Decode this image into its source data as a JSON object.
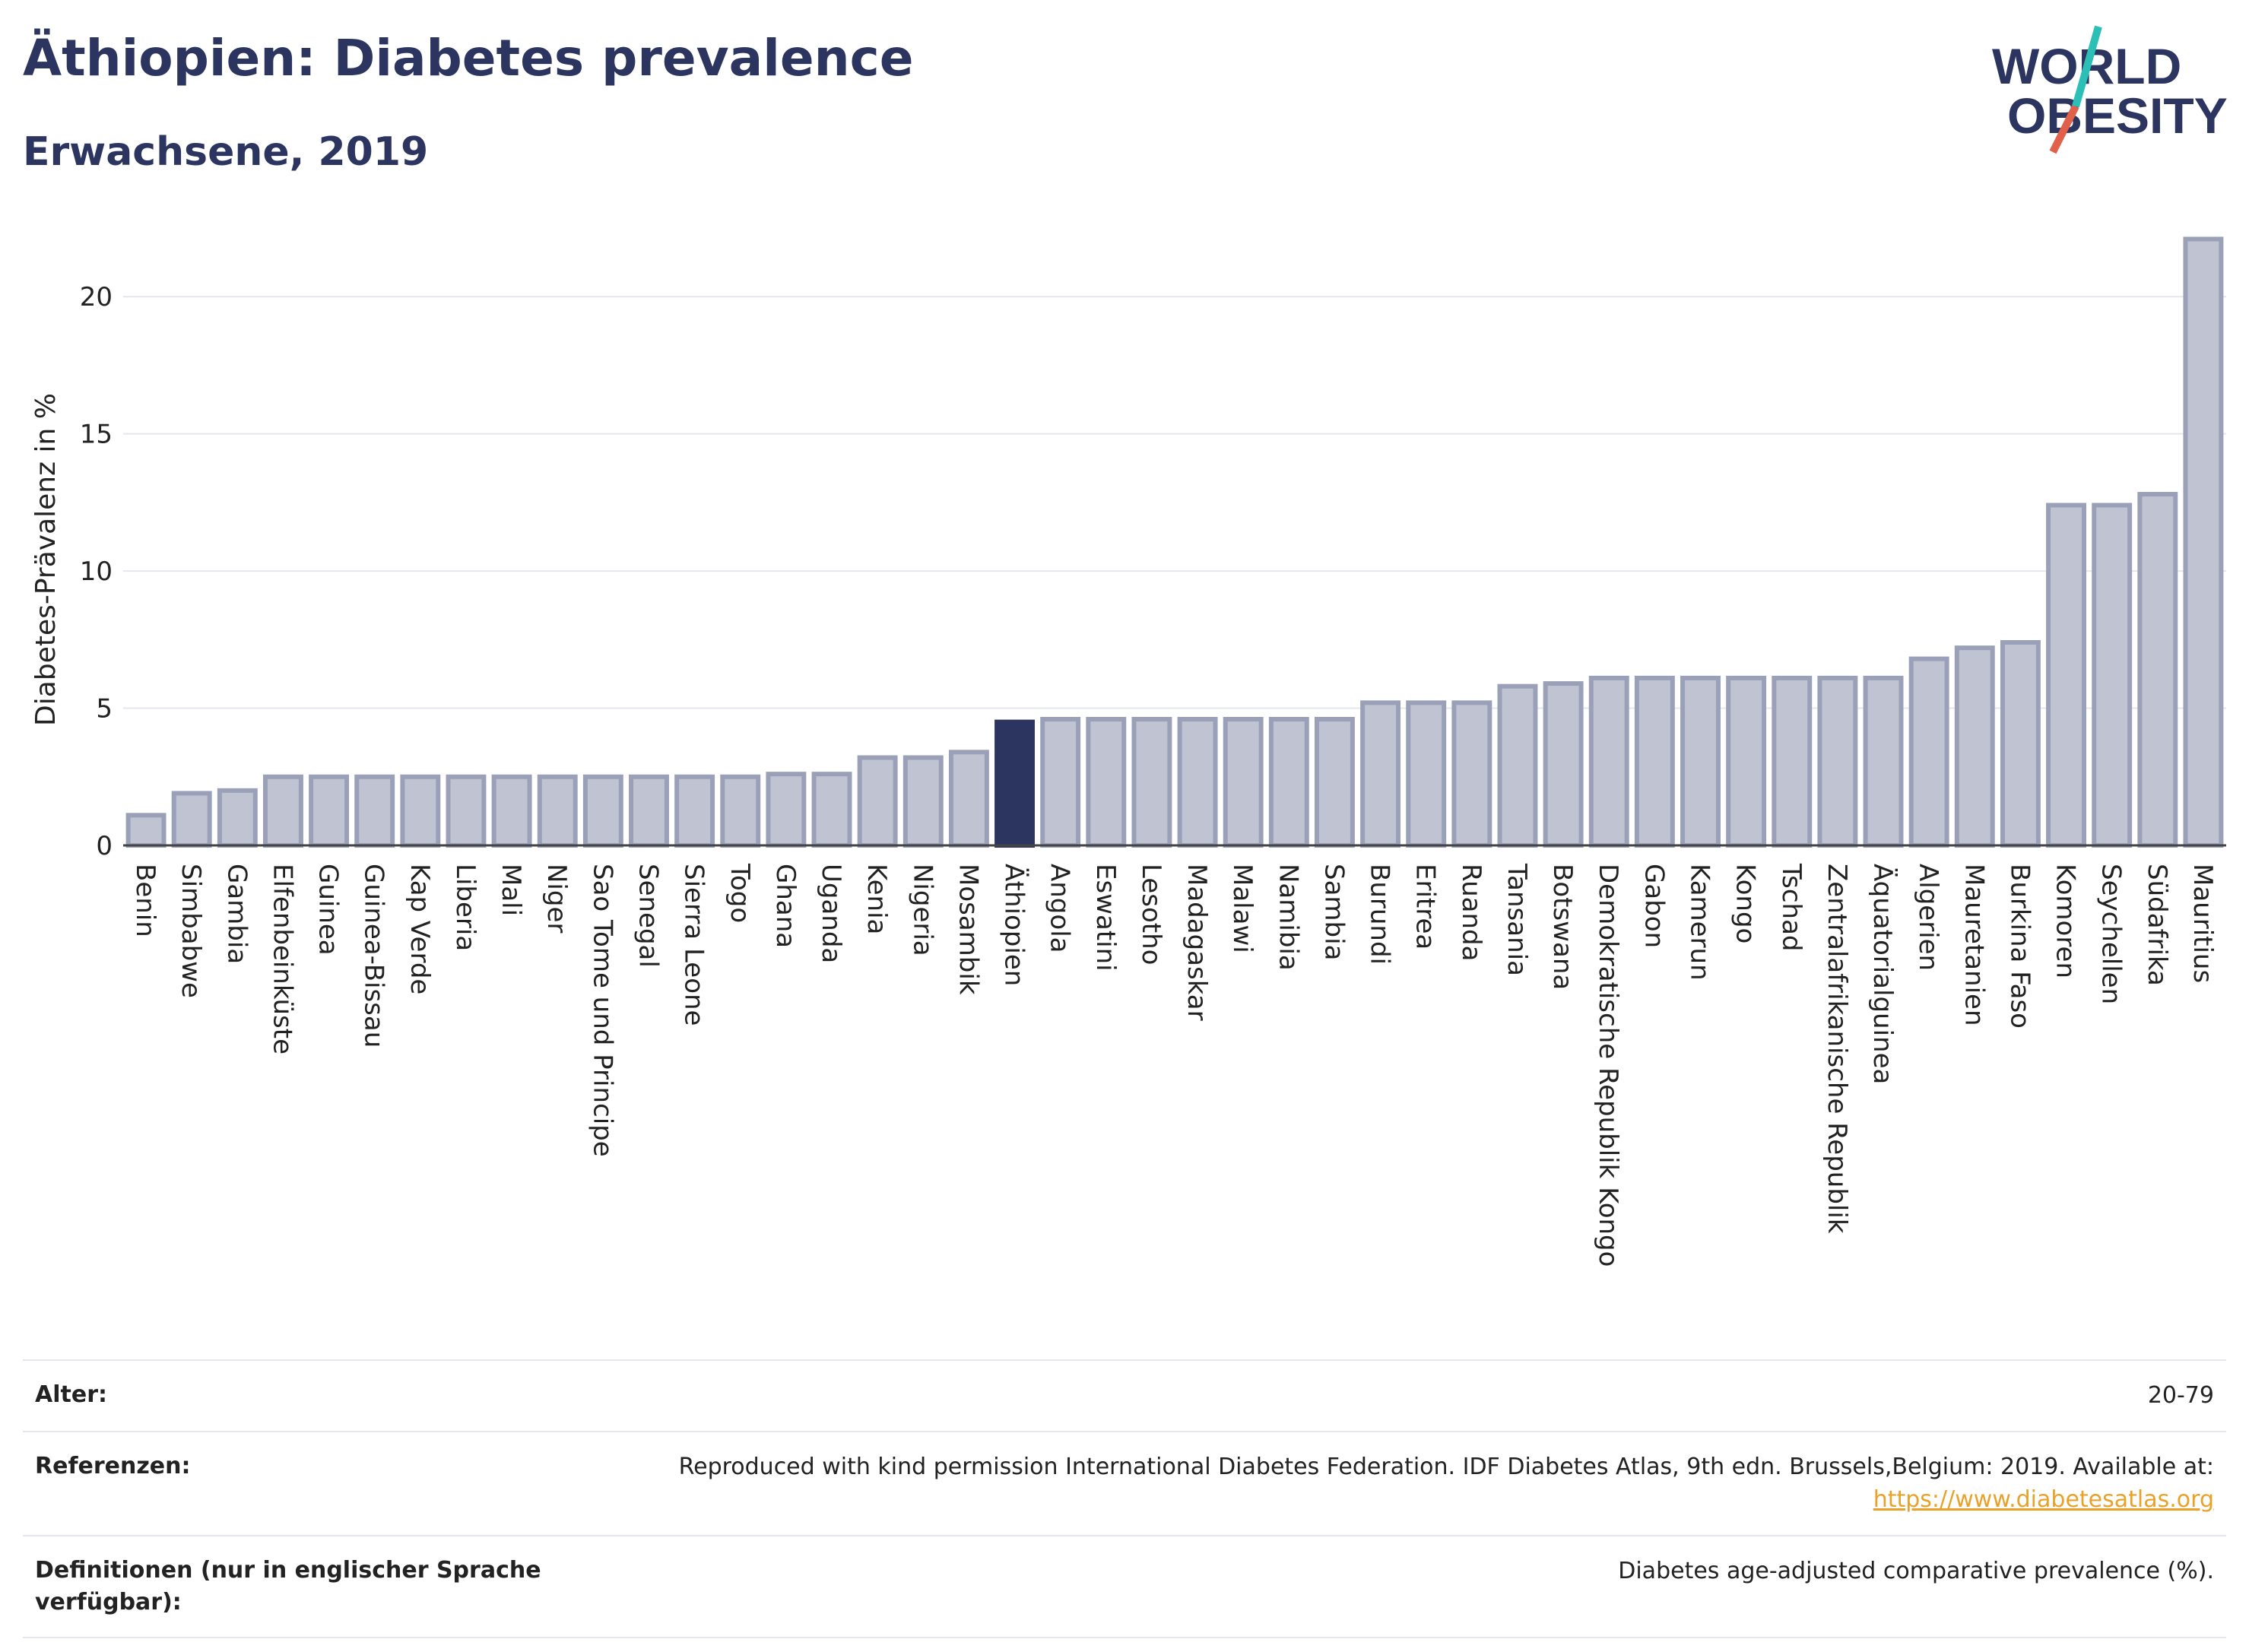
{
  "header": {
    "title": "Äthiopien: Diabetes prevalence",
    "subtitle": "Erwachsene, 2019"
  },
  "logo": {
    "line1": "WORLD",
    "line2": "OBESITY"
  },
  "colors": {
    "highlight": "#2b3560",
    "bar": "#c0c4d2",
    "bar_stroke": "#9aa0b8",
    "grid": "#e4e7ef",
    "text": "#222222",
    "logo_teal": "#2bbfb6",
    "logo_red": "#e0604a"
  },
  "chart_data": {
    "type": "bar",
    "title": "Äthiopien: Diabetes prevalence",
    "subtitle": "Erwachsene, 2019",
    "xlabel": "",
    "ylabel": "Diabetes-Prävalenz in %",
    "ylim": [
      0,
      22.5
    ],
    "yticks": [
      0,
      5,
      10,
      15,
      20
    ],
    "grid": true,
    "highlight": "Äthiopien",
    "categories": [
      "Benin",
      "Simbabwe",
      "Gambia",
      "Elfenbeinküste",
      "Guinea",
      "Guinea-Bissau",
      "Kap Verde",
      "Liberia",
      "Mali",
      "Niger",
      "Sao Tome und Principe",
      "Senegal",
      "Sierra Leone",
      "Togo",
      "Ghana",
      "Uganda",
      "Kenia",
      "Nigeria",
      "Mosambik",
      "Äthiopien",
      "Angola",
      "Eswatini",
      "Lesotho",
      "Madagaskar",
      "Malawi",
      "Namibia",
      "Sambia",
      "Burundi",
      "Eritrea",
      "Ruanda",
      "Tansania",
      "Botswana",
      "Demokratische Republik Kongo",
      "Gabon",
      "Kamerun",
      "Kongo",
      "Tschad",
      "Zentralafrikanische Republik",
      "Äquatorialguinea",
      "Algerien",
      "Mauretanien",
      "Burkina Faso",
      "Komoren",
      "Seychellen",
      "Südafrika",
      "Mauritius"
    ],
    "values": [
      1.1,
      1.9,
      2.0,
      2.5,
      2.5,
      2.5,
      2.5,
      2.5,
      2.5,
      2.5,
      2.5,
      2.5,
      2.5,
      2.5,
      2.6,
      2.6,
      3.2,
      3.2,
      3.4,
      4.5,
      4.6,
      4.6,
      4.6,
      4.6,
      4.6,
      4.6,
      4.6,
      5.2,
      5.2,
      5.2,
      5.8,
      5.9,
      6.1,
      6.1,
      6.1,
      6.1,
      6.1,
      6.1,
      6.1,
      6.8,
      7.2,
      7.4,
      12.4,
      12.4,
      12.8,
      22.1
    ]
  },
  "meta": [
    {
      "label": "Alter:",
      "value": "20-79"
    },
    {
      "label": "Referenzen:",
      "value": "Reproduced with kind permission International Diabetes Federation. IDF Diabetes Atlas, 9th edn. Brussels,Belgium: 2019. Available at:",
      "link": "https://www.diabetesatlas.org"
    },
    {
      "label": "Definitionen (nur in englischer Sprache verfügbar):",
      "value": "Diabetes age-adjusted comparative prevalence (%)."
    }
  ]
}
